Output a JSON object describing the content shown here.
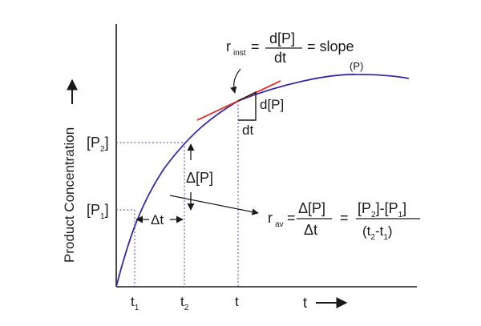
{
  "axes": {
    "y_label": "Product Concentration",
    "x_label": "t"
  },
  "curve_label": "(P)",
  "y_marks": {
    "p2": {
      "base": "[P",
      "sub": "2",
      "close": "]"
    },
    "p1": {
      "base": "[P",
      "sub": "1",
      "close": "]"
    }
  },
  "x_marks": {
    "t1": {
      "base": "t",
      "sub": "1"
    },
    "t2": {
      "base": "t",
      "sub": "2"
    },
    "t": "t"
  },
  "intervals": {
    "delta_p": "Δ[P]",
    "delta_t": "Δt"
  },
  "tangent": {
    "dp": "d[P]",
    "dt": "dt"
  },
  "inst_rate": {
    "r": "r",
    "sub": "inst",
    "eq": "=",
    "num": "d[P]",
    "den": "dt",
    "rhs": "= slope"
  },
  "avg_rate": {
    "r": "r",
    "sub": "av",
    "eq1": "=",
    "num1": "Δ[P]",
    "den1": "Δt",
    "eq2": "=",
    "num2_a": "[P",
    "num2_s1": "2",
    "num2_b": "]-[P",
    "num2_s2": "1",
    "num2_c": "]",
    "den2_a": "(t",
    "den2_s1": "2",
    "den2_b": "-t",
    "den2_s2": "1",
    "den2_c": ")"
  },
  "colors": {
    "curve": "#3b2aa8",
    "tangent": "#e0332c",
    "guide": "#4b3bb0",
    "ink": "#1a1a1a"
  }
}
